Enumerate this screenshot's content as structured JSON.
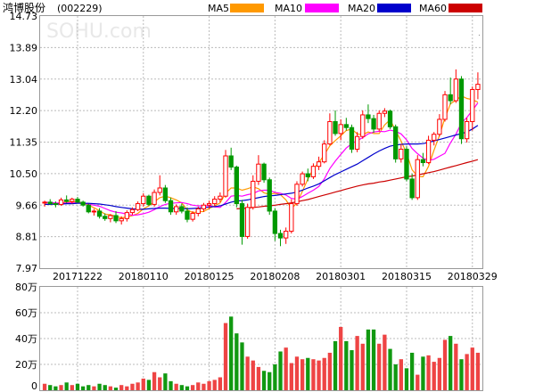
{
  "stock": {
    "name": "鸿博股份",
    "code": "(002229)",
    "watermark": "SOHU.com"
  },
  "legend": [
    {
      "label": "MA5",
      "color": "#ff9900"
    },
    {
      "label": "MA10",
      "color": "#ff00ff"
    },
    {
      "label": "MA20",
      "color": "#0000cc"
    },
    {
      "label": "MA60",
      "color": "#cc0000"
    }
  ],
  "colors": {
    "up": "#ff0000",
    "down": "#009900",
    "vol_up": "#ee4444",
    "vol_down": "#119911",
    "grid": "#bbbbbb"
  },
  "chart_data": [
    {
      "type": "candlestick",
      "title": "鸿博股份(002229)",
      "y_ticks": [
        "14.73",
        "13.89",
        "13.04",
        "12.20",
        "11.35",
        "10.50",
        "9.66",
        "8.81",
        "7.97"
      ],
      "ylim": [
        7.97,
        14.73
      ],
      "x_ticks": [
        "20171222",
        "20180110",
        "20180125",
        "20180208",
        "20180301",
        "20180315",
        "20180329"
      ],
      "x_tick_index": [
        6,
        18,
        30,
        42,
        54,
        66,
        78
      ],
      "ohlc": [
        [
          9.72,
          9.78,
          9.62,
          9.74
        ],
        [
          9.74,
          9.82,
          9.66,
          9.7
        ],
        [
          9.7,
          9.76,
          9.6,
          9.68
        ],
        [
          9.68,
          9.86,
          9.64,
          9.8
        ],
        [
          9.8,
          9.92,
          9.72,
          9.76
        ],
        [
          9.76,
          9.86,
          9.7,
          9.82
        ],
        [
          9.82,
          9.88,
          9.72,
          9.74
        ],
        [
          9.74,
          9.78,
          9.62,
          9.66
        ],
        [
          9.66,
          9.7,
          9.44,
          9.48
        ],
        [
          9.48,
          9.56,
          9.38,
          9.5
        ],
        [
          9.5,
          9.58,
          9.3,
          9.36
        ],
        [
          9.36,
          9.44,
          9.24,
          9.3
        ],
        [
          9.3,
          9.42,
          9.2,
          9.38
        ],
        [
          9.38,
          9.5,
          9.18,
          9.24
        ],
        [
          9.24,
          9.36,
          9.14,
          9.3
        ],
        [
          9.3,
          9.52,
          9.22,
          9.46
        ],
        [
          9.46,
          9.6,
          9.4,
          9.54
        ],
        [
          9.54,
          9.76,
          9.5,
          9.7
        ],
        [
          9.7,
          9.98,
          9.62,
          9.9
        ],
        [
          9.9,
          9.94,
          9.64,
          9.68
        ],
        [
          9.68,
          10.08,
          9.62,
          10.0
        ],
        [
          10.0,
          10.46,
          9.92,
          10.12
        ],
        [
          10.12,
          10.2,
          9.72,
          9.78
        ],
        [
          9.78,
          9.86,
          9.4,
          9.48
        ],
        [
          9.48,
          9.68,
          9.4,
          9.62
        ],
        [
          9.62,
          9.7,
          9.44,
          9.5
        ],
        [
          9.5,
          9.6,
          9.2,
          9.28
        ],
        [
          9.28,
          9.5,
          9.22,
          9.44
        ],
        [
          9.44,
          9.62,
          9.36,
          9.56
        ],
        [
          9.56,
          9.72,
          9.48,
          9.66
        ],
        [
          9.66,
          9.78,
          9.56,
          9.7
        ],
        [
          9.7,
          9.9,
          9.64,
          9.82
        ],
        [
          9.82,
          10.0,
          9.74,
          9.9
        ],
        [
          9.9,
          11.14,
          9.86,
          10.98
        ],
        [
          10.98,
          11.2,
          10.6,
          10.68
        ],
        [
          10.68,
          10.72,
          9.6,
          9.7
        ],
        [
          9.7,
          9.8,
          8.6,
          8.82
        ],
        [
          8.82,
          9.7,
          8.76,
          9.6
        ],
        [
          9.6,
          10.46,
          9.54,
          10.3
        ],
        [
          10.3,
          11.0,
          10.2,
          10.76
        ],
        [
          10.76,
          10.8,
          10.26,
          10.34
        ],
        [
          10.34,
          10.4,
          9.4,
          9.5
        ],
        [
          9.5,
          9.58,
          8.7,
          8.9
        ],
        [
          8.9,
          9.0,
          8.56,
          8.78
        ],
        [
          8.78,
          9.06,
          8.62,
          8.96
        ],
        [
          8.96,
          9.82,
          8.9,
          9.7
        ],
        [
          9.7,
          10.3,
          9.64,
          10.22
        ],
        [
          10.22,
          10.56,
          10.16,
          10.5
        ],
        [
          10.5,
          10.64,
          10.3,
          10.42
        ],
        [
          10.42,
          10.78,
          10.36,
          10.7
        ],
        [
          10.7,
          10.96,
          10.6,
          10.82
        ],
        [
          10.82,
          11.4,
          10.78,
          11.3
        ],
        [
          11.3,
          12.12,
          11.26,
          11.9
        ],
        [
          11.9,
          12.2,
          11.52,
          11.58
        ],
        [
          11.58,
          11.96,
          11.4,
          11.82
        ],
        [
          11.82,
          12.0,
          11.66,
          11.74
        ],
        [
          11.74,
          11.82,
          11.06,
          11.16
        ],
        [
          11.16,
          11.62,
          11.08,
          11.5
        ],
        [
          11.5,
          12.2,
          11.44,
          12.08
        ],
        [
          12.08,
          12.36,
          11.86,
          11.98
        ],
        [
          11.98,
          12.08,
          11.6,
          11.7
        ],
        [
          11.7,
          12.2,
          11.64,
          12.12
        ],
        [
          12.12,
          12.26,
          12.02,
          12.18
        ],
        [
          12.18,
          12.22,
          11.7,
          11.76
        ],
        [
          11.76,
          11.82,
          10.8,
          10.9
        ],
        [
          10.9,
          11.3,
          10.8,
          11.16
        ],
        [
          11.16,
          11.24,
          10.3,
          10.36
        ],
        [
          10.36,
          10.5,
          9.8,
          9.86
        ],
        [
          9.86,
          11.0,
          9.8,
          10.88
        ],
        [
          10.88,
          11.06,
          10.7,
          10.8
        ],
        [
          10.8,
          11.52,
          10.76,
          11.4
        ],
        [
          11.4,
          11.62,
          11.26,
          11.56
        ],
        [
          11.56,
          12.1,
          11.5,
          11.96
        ],
        [
          11.96,
          12.72,
          11.9,
          12.62
        ],
        [
          12.62,
          13.08,
          12.36,
          12.46
        ],
        [
          12.46,
          13.3,
          12.4,
          13.04
        ],
        [
          13.04,
          13.12,
          11.3,
          11.44
        ],
        [
          11.44,
          12.0,
          11.34,
          11.9
        ],
        [
          11.9,
          12.84,
          11.66,
          12.76
        ],
        [
          12.76,
          13.22,
          12.5,
          12.9
        ]
      ],
      "ma": {
        "MA5": [
          9.74,
          9.72,
          9.71,
          9.72,
          9.74,
          9.75,
          9.74,
          9.72,
          9.66,
          9.59,
          9.51,
          9.42,
          9.4,
          9.36,
          9.32,
          9.34,
          9.38,
          9.44,
          9.56,
          9.64,
          9.75,
          9.86,
          9.9,
          9.86,
          9.8,
          9.72,
          9.53,
          9.46,
          9.48,
          9.49,
          9.57,
          9.64,
          9.72,
          9.98,
          10.12,
          10.12,
          10.06,
          10.1,
          10.15,
          10.1,
          9.99,
          9.95,
          9.98,
          9.94,
          9.8,
          9.57,
          9.71,
          10.03,
          10.36,
          10.63,
          10.8,
          11.01,
          11.25,
          11.39,
          11.52,
          11.66,
          11.7,
          11.57,
          11.55,
          11.62,
          11.58,
          11.58,
          11.81,
          11.95,
          11.66,
          11.38,
          11.05,
          10.61,
          10.43,
          10.42,
          10.7,
          11.13,
          11.53,
          12.0,
          12.38,
          12.47,
          12.59,
          12.52,
          12.49,
          12.42
        ],
        "MA10": [
          9.74,
          9.73,
          9.72,
          9.71,
          9.72,
          9.72,
          9.72,
          9.71,
          9.69,
          9.66,
          9.63,
          9.57,
          9.51,
          9.47,
          9.45,
          9.42,
          9.39,
          9.4,
          9.43,
          9.47,
          9.54,
          9.62,
          9.68,
          9.71,
          9.72,
          9.73,
          9.7,
          9.66,
          9.64,
          9.64,
          9.65,
          9.61,
          9.6,
          9.73,
          9.9,
          9.92,
          9.9,
          9.94,
          9.97,
          10.04,
          10.06,
          10.06,
          10.0,
          9.98,
          9.93,
          9.84,
          9.82,
          9.89,
          9.98,
          10.06,
          10.16,
          10.36,
          10.64,
          10.84,
          11.02,
          11.19,
          11.31,
          11.39,
          11.47,
          11.57,
          11.62,
          11.64,
          11.63,
          11.67,
          11.64,
          11.57,
          11.41,
          11.18,
          11.04,
          10.92,
          10.86,
          10.89,
          10.97,
          11.05,
          11.33,
          11.56,
          11.86,
          12.01,
          12.2,
          12.4
        ],
        "MA20": [
          9.68,
          9.68,
          9.69,
          9.69,
          9.7,
          9.7,
          9.71,
          9.71,
          9.71,
          9.7,
          9.69,
          9.67,
          9.65,
          9.62,
          9.6,
          9.58,
          9.56,
          9.55,
          9.55,
          9.56,
          9.57,
          9.58,
          9.58,
          9.57,
          9.57,
          9.57,
          9.56,
          9.57,
          9.58,
          9.59,
          9.61,
          9.62,
          9.64,
          9.69,
          9.74,
          9.77,
          9.78,
          9.8,
          9.83,
          9.86,
          9.89,
          9.91,
          9.92,
          9.94,
          9.96,
          9.98,
          10.01,
          10.06,
          10.12,
          10.17,
          10.23,
          10.31,
          10.4,
          10.48,
          10.55,
          10.62,
          10.69,
          10.76,
          10.85,
          10.94,
          11.03,
          11.11,
          11.18,
          11.24,
          11.27,
          11.29,
          11.3,
          11.3,
          11.3,
          11.31,
          11.34,
          11.38,
          11.42,
          11.46,
          11.5,
          11.54,
          11.58,
          11.62,
          11.7,
          11.8
        ],
        "MA60": [
          null,
          null,
          null,
          null,
          null,
          null,
          null,
          null,
          null,
          null,
          null,
          null,
          null,
          null,
          null,
          null,
          null,
          null,
          null,
          null,
          null,
          null,
          null,
          null,
          null,
          null,
          null,
          null,
          null,
          null,
          null,
          null,
          null,
          null,
          null,
          9.56,
          9.57,
          9.58,
          9.6,
          9.61,
          9.63,
          9.64,
          9.66,
          9.68,
          9.7,
          9.72,
          9.75,
          9.78,
          9.81,
          9.85,
          9.89,
          9.93,
          9.97,
          10.01,
          10.05,
          10.09,
          10.13,
          10.17,
          10.2,
          10.23,
          10.25,
          10.28,
          10.3,
          10.33,
          10.36,
          10.39,
          10.42,
          10.44,
          10.47,
          10.5,
          10.53,
          10.56,
          10.6,
          10.64,
          10.68,
          10.72,
          10.76,
          10.8,
          10.84,
          10.88
        ]
      }
    },
    {
      "type": "bar",
      "title": "volume",
      "y_ticks": [
        "80万",
        "60万",
        "40万",
        "20万",
        "0"
      ],
      "ylim": [
        0,
        80
      ],
      "unit": "万",
      "values": [
        5,
        4,
        3,
        4,
        6,
        4,
        5,
        3,
        4,
        3,
        5,
        4,
        3,
        2,
        4,
        3,
        5,
        6,
        9,
        8,
        14,
        10,
        13,
        7,
        5,
        4,
        3,
        4,
        6,
        5,
        7,
        8,
        10,
        52,
        57,
        44,
        37,
        26,
        23,
        18,
        15,
        14,
        20,
        30,
        33,
        21,
        26,
        24,
        25,
        24,
        23,
        25,
        29,
        38,
        49,
        38,
        31,
        42,
        36,
        47,
        47,
        36,
        43,
        32,
        20,
        24,
        17,
        29,
        12,
        26,
        27,
        22,
        25,
        39,
        42,
        36,
        24,
        28,
        33,
        29
      ]
    }
  ]
}
